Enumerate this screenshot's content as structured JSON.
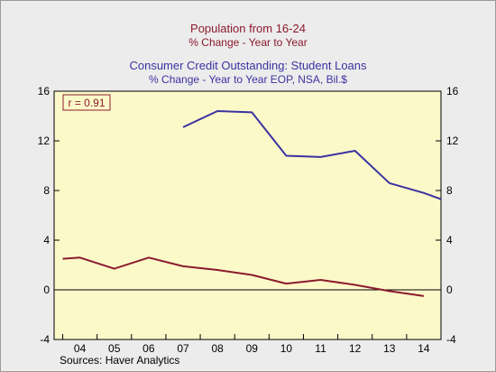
{
  "titles": {
    "red_title": "Population from 16-24",
    "red_subtitle": "% Change - Year to Year",
    "blue_title": "Consumer Credit Outstanding: Student Loans",
    "blue_subtitle": "% Change - Year to Year    EOP, NSA, Bil.$"
  },
  "source": "Sources:   Haver Analytics",
  "chart_data": {
    "type": "line",
    "annotation": "r = 0.91",
    "categories": [
      "04",
      "05",
      "06",
      "07",
      "08",
      "09",
      "10",
      "11",
      "12",
      "13",
      "14"
    ],
    "y_left": {
      "lim": [
        -4,
        16
      ],
      "ticks": [
        -4,
        0,
        4,
        8,
        12,
        16
      ]
    },
    "y_right": {
      "lim": [
        -4,
        16
      ],
      "ticks": [
        -4,
        0,
        4,
        8,
        12,
        16
      ]
    },
    "grid": false,
    "zero_line": true,
    "series": [
      {
        "name": "Population from 16-24",
        "color": "#8b1a2e",
        "points": [
          [
            2004.0,
            2.5
          ],
          [
            2004.5,
            2.6
          ],
          [
            2005.5,
            1.7
          ],
          [
            2006.5,
            2.6
          ],
          [
            2007.5,
            1.9
          ],
          [
            2008.5,
            1.6
          ],
          [
            2009.5,
            1.2
          ],
          [
            2010.5,
            0.5
          ],
          [
            2011.5,
            0.8
          ],
          [
            2012.5,
            0.4
          ],
          [
            2013.5,
            -0.1
          ],
          [
            2014.5,
            -0.5
          ]
        ]
      },
      {
        "name": "Consumer Credit Outstanding: Student Loans",
        "color": "#3b32a0",
        "points": [
          [
            2007.5,
            13.1
          ],
          [
            2008.5,
            14.4
          ],
          [
            2009.5,
            14.3
          ],
          [
            2010.5,
            10.8
          ],
          [
            2011.5,
            10.7
          ],
          [
            2012.5,
            11.2
          ],
          [
            2013.5,
            8.6
          ],
          [
            2014.5,
            7.8
          ],
          [
            2015.0,
            7.3
          ]
        ]
      }
    ]
  }
}
